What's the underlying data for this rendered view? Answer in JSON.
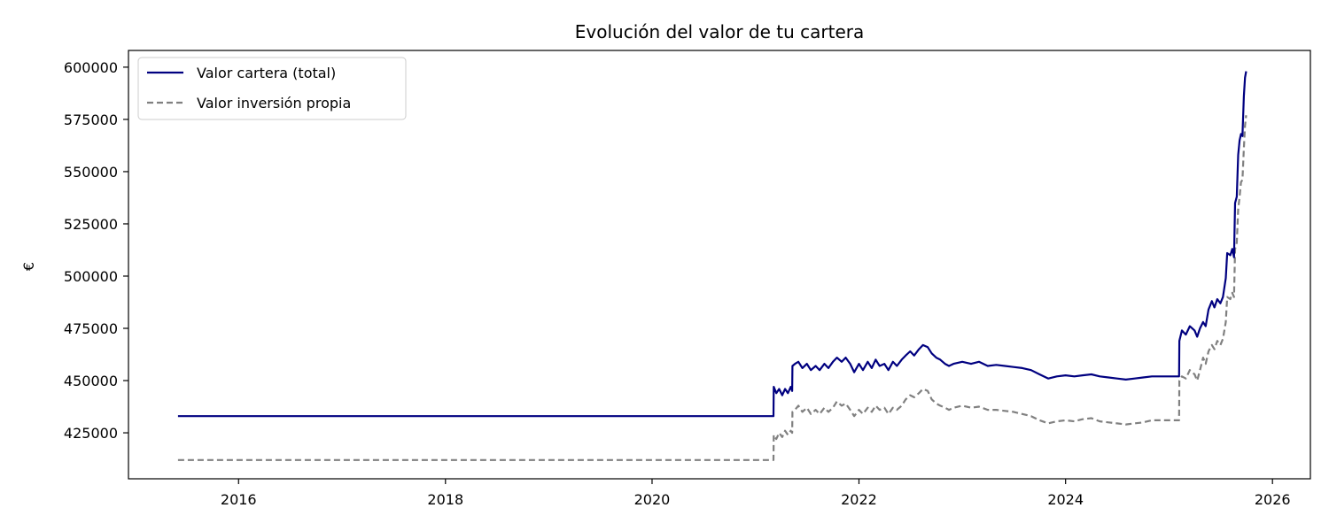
{
  "chart_data": {
    "type": "line",
    "title": "Evolución del valor de tu cartera",
    "xlabel": "",
    "ylabel": "€",
    "xlim": [
      "2014-12-08",
      "2026-05-15"
    ],
    "ylim": [
      403000,
      608000
    ],
    "x_ticks": [
      "2016",
      "2018",
      "2020",
      "2022",
      "2024",
      "2026"
    ],
    "y_ticks": [
      425000,
      450000,
      475000,
      500000,
      525000,
      550000,
      575000,
      600000
    ],
    "y_tick_labels": [
      "425000",
      "450000",
      "475000",
      "500000",
      "525000",
      "550000",
      "575000",
      "600000"
    ],
    "grid": false,
    "legend": "top-left",
    "series": [
      {
        "name": "Valor cartera (total)",
        "color": "#000080",
        "style": "solid",
        "points": [
          [
            "2015-06-01",
            433000
          ],
          [
            "2021-03-05",
            433000
          ],
          [
            "2021-03-06",
            447000
          ],
          [
            "2021-03-15",
            444000
          ],
          [
            "2021-03-25",
            446000
          ],
          [
            "2021-04-05",
            443000
          ],
          [
            "2021-04-15",
            446000
          ],
          [
            "2021-04-25",
            444000
          ],
          [
            "2021-05-05",
            447000
          ],
          [
            "2021-05-10",
            445000
          ],
          [
            "2021-05-11",
            457000
          ],
          [
            "2021-05-20",
            458000
          ],
          [
            "2021-06-01",
            459000
          ],
          [
            "2021-06-15",
            456000
          ],
          [
            "2021-07-01",
            458000
          ],
          [
            "2021-07-15",
            455000
          ],
          [
            "2021-08-01",
            457000
          ],
          [
            "2021-08-15",
            455000
          ],
          [
            "2021-09-01",
            458000
          ],
          [
            "2021-09-15",
            456000
          ],
          [
            "2021-10-01",
            459000
          ],
          [
            "2021-10-15",
            461000
          ],
          [
            "2021-11-01",
            459000
          ],
          [
            "2021-11-15",
            461000
          ],
          [
            "2021-12-01",
            458000
          ],
          [
            "2021-12-15",
            454000
          ],
          [
            "2022-01-01",
            458000
          ],
          [
            "2022-01-15",
            455000
          ],
          [
            "2022-02-01",
            459000
          ],
          [
            "2022-02-15",
            456000
          ],
          [
            "2022-03-01",
            460000
          ],
          [
            "2022-03-15",
            457000
          ],
          [
            "2022-04-01",
            458000
          ],
          [
            "2022-04-15",
            455000
          ],
          [
            "2022-05-01",
            459000
          ],
          [
            "2022-05-15",
            457000
          ],
          [
            "2022-06-01",
            460000
          ],
          [
            "2022-06-15",
            462000
          ],
          [
            "2022-07-01",
            464000
          ],
          [
            "2022-07-15",
            462000
          ],
          [
            "2022-08-01",
            465000
          ],
          [
            "2022-08-15",
            467000
          ],
          [
            "2022-09-01",
            466000
          ],
          [
            "2022-09-15",
            463000
          ],
          [
            "2022-10-01",
            461000
          ],
          [
            "2022-10-15",
            460000
          ],
          [
            "2022-11-01",
            458000
          ],
          [
            "2022-11-15",
            457000
          ],
          [
            "2022-12-01",
            458000
          ],
          [
            "2023-01-01",
            459000
          ],
          [
            "2023-02-01",
            458000
          ],
          [
            "2023-03-01",
            459000
          ],
          [
            "2023-04-01",
            457000
          ],
          [
            "2023-05-01",
            457500
          ],
          [
            "2023-06-01",
            457000
          ],
          [
            "2023-07-01",
            456500
          ],
          [
            "2023-08-01",
            456000
          ],
          [
            "2023-09-01",
            455000
          ],
          [
            "2023-10-01",
            453000
          ],
          [
            "2023-11-01",
            451000
          ],
          [
            "2023-12-01",
            452000
          ],
          [
            "2024-01-01",
            452500
          ],
          [
            "2024-02-01",
            452000
          ],
          [
            "2024-03-01",
            452500
          ],
          [
            "2024-04-01",
            453000
          ],
          [
            "2024-05-01",
            452000
          ],
          [
            "2024-06-01",
            451500
          ],
          [
            "2024-07-01",
            451000
          ],
          [
            "2024-08-01",
            450500
          ],
          [
            "2024-09-01",
            451000
          ],
          [
            "2024-10-01",
            451500
          ],
          [
            "2024-11-01",
            452000
          ],
          [
            "2024-12-01",
            452000
          ],
          [
            "2025-01-15",
            452000
          ],
          [
            "2025-02-05",
            452000
          ],
          [
            "2025-02-06",
            469000
          ],
          [
            "2025-02-15",
            474000
          ],
          [
            "2025-03-01",
            472000
          ],
          [
            "2025-03-15",
            476000
          ],
          [
            "2025-04-01",
            474000
          ],
          [
            "2025-04-10",
            471000
          ],
          [
            "2025-04-20",
            475000
          ],
          [
            "2025-05-01",
            478000
          ],
          [
            "2025-05-10",
            476000
          ],
          [
            "2025-05-20",
            484000
          ],
          [
            "2025-06-01",
            488000
          ],
          [
            "2025-06-10",
            485000
          ],
          [
            "2025-06-20",
            489000
          ],
          [
            "2025-07-01",
            487000
          ],
          [
            "2025-07-10",
            490000
          ],
          [
            "2025-07-20",
            499000
          ],
          [
            "2025-07-25",
            511000
          ],
          [
            "2025-08-05",
            510000
          ],
          [
            "2025-08-12",
            513000
          ],
          [
            "2025-08-18",
            509000
          ],
          [
            "2025-08-22",
            535000
          ],
          [
            "2025-08-28",
            538000
          ],
          [
            "2025-09-02",
            558000
          ],
          [
            "2025-09-07",
            565000
          ],
          [
            "2025-09-12",
            568000
          ],
          [
            "2025-09-17",
            567000
          ],
          [
            "2025-09-22",
            586000
          ],
          [
            "2025-09-26",
            595000
          ],
          [
            "2025-09-30",
            598000
          ]
        ]
      },
      {
        "name": "Valor inversión propia",
        "color": "#808080",
        "style": "dashed",
        "points": [
          [
            "2015-06-01",
            412000
          ],
          [
            "2021-03-05",
            412000
          ],
          [
            "2021-03-06",
            424000
          ],
          [
            "2021-03-15",
            422000
          ],
          [
            "2021-03-25",
            425000
          ],
          [
            "2021-04-05",
            423000
          ],
          [
            "2021-04-15",
            426000
          ],
          [
            "2021-04-25",
            424000
          ],
          [
            "2021-05-05",
            426000
          ],
          [
            "2021-05-10",
            425000
          ],
          [
            "2021-05-11",
            435000
          ],
          [
            "2021-05-20",
            436000
          ],
          [
            "2021-06-01",
            438000
          ],
          [
            "2021-06-15",
            435000
          ],
          [
            "2021-07-01",
            437000
          ],
          [
            "2021-07-15",
            434000
          ],
          [
            "2021-08-01",
            436000
          ],
          [
            "2021-08-15",
            434000
          ],
          [
            "2021-09-01",
            437000
          ],
          [
            "2021-09-15",
            435000
          ],
          [
            "2021-10-01",
            437000
          ],
          [
            "2021-10-15",
            440000
          ],
          [
            "2021-11-01",
            438000
          ],
          [
            "2021-11-15",
            439000
          ],
          [
            "2021-12-01",
            436000
          ],
          [
            "2021-12-15",
            433000
          ],
          [
            "2022-01-01",
            436000
          ],
          [
            "2022-01-15",
            434000
          ],
          [
            "2022-02-01",
            437000
          ],
          [
            "2022-02-15",
            435000
          ],
          [
            "2022-03-01",
            438000
          ],
          [
            "2022-03-15",
            436000
          ],
          [
            "2022-04-01",
            437000
          ],
          [
            "2022-04-15",
            434000
          ],
          [
            "2022-05-01",
            437000
          ],
          [
            "2022-05-15",
            436000
          ],
          [
            "2022-06-01",
            438000
          ],
          [
            "2022-06-15",
            441000
          ],
          [
            "2022-07-01",
            443000
          ],
          [
            "2022-07-15",
            442000
          ],
          [
            "2022-08-01",
            444000
          ],
          [
            "2022-08-15",
            446000
          ],
          [
            "2022-09-01",
            445000
          ],
          [
            "2022-09-15",
            441000
          ],
          [
            "2022-10-01",
            439000
          ],
          [
            "2022-10-15",
            438000
          ],
          [
            "2022-11-01",
            437000
          ],
          [
            "2022-11-15",
            436000
          ],
          [
            "2022-12-01",
            437000
          ],
          [
            "2023-01-01",
            438000
          ],
          [
            "2023-02-01",
            437000
          ],
          [
            "2023-03-01",
            437500
          ],
          [
            "2023-04-01",
            436000
          ],
          [
            "2023-05-01",
            436000
          ],
          [
            "2023-06-01",
            435500
          ],
          [
            "2023-07-01",
            435000
          ],
          [
            "2023-08-01",
            434000
          ],
          [
            "2023-09-01",
            433000
          ],
          [
            "2023-10-01",
            431000
          ],
          [
            "2023-11-01",
            429500
          ],
          [
            "2023-12-01",
            430500
          ],
          [
            "2024-01-01",
            431000
          ],
          [
            "2024-02-01",
            430500
          ],
          [
            "2024-03-01",
            431500
          ],
          [
            "2024-04-01",
            432000
          ],
          [
            "2024-05-01",
            430500
          ],
          [
            "2024-06-01",
            430000
          ],
          [
            "2024-07-01",
            429500
          ],
          [
            "2024-08-01",
            429000
          ],
          [
            "2024-09-01",
            429500
          ],
          [
            "2024-10-01",
            430000
          ],
          [
            "2024-11-01",
            431000
          ],
          [
            "2024-12-01",
            431000
          ],
          [
            "2025-01-15",
            431000
          ],
          [
            "2025-02-05",
            431000
          ],
          [
            "2025-02-06",
            450000
          ],
          [
            "2025-02-15",
            452000
          ],
          [
            "2025-03-01",
            451000
          ],
          [
            "2025-03-15",
            455000
          ],
          [
            "2025-04-01",
            453000
          ],
          [
            "2025-04-10",
            450000
          ],
          [
            "2025-04-20",
            455000
          ],
          [
            "2025-05-01",
            461000
          ],
          [
            "2025-05-10",
            458000
          ],
          [
            "2025-05-20",
            464000
          ],
          [
            "2025-06-01",
            467000
          ],
          [
            "2025-06-10",
            465000
          ],
          [
            "2025-06-20",
            469000
          ],
          [
            "2025-07-01",
            467000
          ],
          [
            "2025-07-10",
            470000
          ],
          [
            "2025-07-20",
            478000
          ],
          [
            "2025-07-25",
            490000
          ],
          [
            "2025-08-05",
            489000
          ],
          [
            "2025-08-12",
            492000
          ],
          [
            "2025-08-18",
            490000
          ],
          [
            "2025-08-22",
            513000
          ],
          [
            "2025-08-28",
            516000
          ],
          [
            "2025-09-02",
            532000
          ],
          [
            "2025-09-07",
            538000
          ],
          [
            "2025-09-12",
            545000
          ],
          [
            "2025-09-17",
            546000
          ],
          [
            "2025-09-22",
            561000
          ],
          [
            "2025-09-26",
            572000
          ],
          [
            "2025-09-30",
            577000
          ]
        ]
      }
    ]
  }
}
